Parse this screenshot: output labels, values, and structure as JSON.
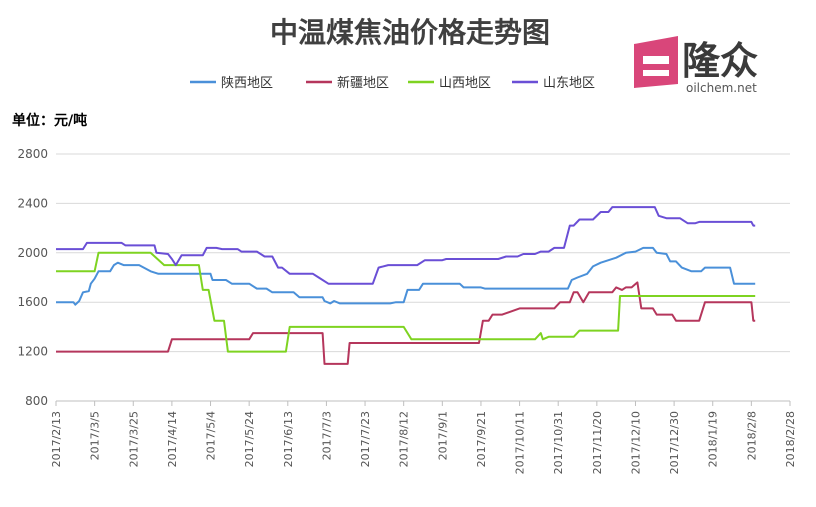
{
  "chart_data": {
    "type": "line",
    "title": "中温煤焦油价格走势图",
    "unit_label": "单位：元/吨",
    "xlabel": "",
    "ylabel": "",
    "ylim": [
      800,
      2800
    ],
    "yticks": [
      800,
      1200,
      1600,
      2000,
      2400,
      2800
    ],
    "xlim": [
      "2017-02-13",
      "2018-02-28"
    ],
    "xticks": [
      "2017/2/13",
      "2017/3/5",
      "2017/3/25",
      "2017/4/14",
      "2017/5/4",
      "2017/5/24",
      "2017/6/13",
      "2017/7/3",
      "2017/7/23",
      "2017/8/12",
      "2017/9/1",
      "2017/9/21",
      "2017/10/11",
      "2017/10/31",
      "2017/11/20",
      "2017/12/10",
      "2017/12/30",
      "2018/1/19",
      "2018/2/8",
      "2018/2/28"
    ],
    "grid": "horizontal",
    "legend_position": "top",
    "series": [
      {
        "name": "陕西地区",
        "color": "#4a90d9",
        "points": [
          [
            "2017-02-13",
            1600
          ],
          [
            "2017-02-22",
            1600
          ],
          [
            "2017-02-23",
            1580
          ],
          [
            "2017-02-25",
            1610
          ],
          [
            "2017-02-27",
            1680
          ],
          [
            "2017-03-02",
            1690
          ],
          [
            "2017-03-03",
            1750
          ],
          [
            "2017-03-05",
            1790
          ],
          [
            "2017-03-07",
            1850
          ],
          [
            "2017-03-13",
            1850
          ],
          [
            "2017-03-15",
            1900
          ],
          [
            "2017-03-17",
            1920
          ],
          [
            "2017-03-20",
            1900
          ],
          [
            "2017-03-28",
            1900
          ],
          [
            "2017-04-03",
            1850
          ],
          [
            "2017-04-07",
            1830
          ],
          [
            "2017-05-04",
            1830
          ],
          [
            "2017-05-05",
            1780
          ],
          [
            "2017-05-12",
            1780
          ],
          [
            "2017-05-15",
            1750
          ],
          [
            "2017-05-24",
            1750
          ],
          [
            "2017-05-28",
            1710
          ],
          [
            "2017-06-02",
            1710
          ],
          [
            "2017-06-05",
            1680
          ],
          [
            "2017-06-16",
            1680
          ],
          [
            "2017-06-19",
            1640
          ],
          [
            "2017-07-01",
            1640
          ],
          [
            "2017-07-02",
            1610
          ],
          [
            "2017-07-05",
            1590
          ],
          [
            "2017-07-07",
            1610
          ],
          [
            "2017-07-10",
            1590
          ],
          [
            "2017-08-05",
            1590
          ],
          [
            "2017-08-08",
            1600
          ],
          [
            "2017-08-12",
            1600
          ],
          [
            "2017-08-14",
            1700
          ],
          [
            "2017-08-20",
            1700
          ],
          [
            "2017-08-22",
            1750
          ],
          [
            "2017-09-10",
            1750
          ],
          [
            "2017-09-12",
            1720
          ],
          [
            "2017-09-21",
            1720
          ],
          [
            "2017-09-23",
            1710
          ],
          [
            "2017-11-05",
            1710
          ],
          [
            "2017-11-07",
            1780
          ],
          [
            "2017-11-10",
            1800
          ],
          [
            "2017-11-15",
            1830
          ],
          [
            "2017-11-18",
            1890
          ],
          [
            "2017-11-22",
            1920
          ],
          [
            "2017-11-30",
            1960
          ],
          [
            "2017-12-05",
            2000
          ],
          [
            "2017-12-10",
            2010
          ],
          [
            "2017-12-14",
            2040
          ],
          [
            "2017-12-19",
            2040
          ],
          [
            "2017-12-21",
            2000
          ],
          [
            "2017-12-26",
            1990
          ],
          [
            "2017-12-28",
            1930
          ],
          [
            "2017-12-31",
            1930
          ],
          [
            "2018-01-03",
            1880
          ],
          [
            "2018-01-08",
            1850
          ],
          [
            "2018-01-13",
            1850
          ],
          [
            "2018-01-15",
            1880
          ],
          [
            "2018-01-28",
            1880
          ],
          [
            "2018-01-30",
            1750
          ],
          [
            "2018-02-10",
            1750
          ]
        ]
      },
      {
        "name": "新疆地区",
        "color": "#b5365c",
        "points": [
          [
            "2017-02-13",
            1200
          ],
          [
            "2017-04-12",
            1200
          ],
          [
            "2017-04-14",
            1300
          ],
          [
            "2017-05-24",
            1300
          ],
          [
            "2017-05-26",
            1350
          ],
          [
            "2017-07-01",
            1350
          ],
          [
            "2017-07-02",
            1100
          ],
          [
            "2017-07-14",
            1100
          ],
          [
            "2017-07-15",
            1270
          ],
          [
            "2017-09-20",
            1270
          ],
          [
            "2017-09-22",
            1450
          ],
          [
            "2017-09-25",
            1450
          ],
          [
            "2017-09-27",
            1500
          ],
          [
            "2017-10-02",
            1500
          ],
          [
            "2017-10-11",
            1550
          ],
          [
            "2017-10-29",
            1550
          ],
          [
            "2017-11-01",
            1600
          ],
          [
            "2017-11-06",
            1600
          ],
          [
            "2017-11-08",
            1680
          ],
          [
            "2017-11-10",
            1680
          ],
          [
            "2017-11-13",
            1600
          ],
          [
            "2017-11-16",
            1680
          ],
          [
            "2017-11-20",
            1680
          ],
          [
            "2017-11-28",
            1680
          ],
          [
            "2017-11-30",
            1720
          ],
          [
            "2017-12-03",
            1700
          ],
          [
            "2017-12-05",
            1720
          ],
          [
            "2017-12-08",
            1720
          ],
          [
            "2017-12-11",
            1760
          ],
          [
            "2017-12-13",
            1550
          ],
          [
            "2017-12-19",
            1550
          ],
          [
            "2017-12-21",
            1500
          ],
          [
            "2017-12-29",
            1500
          ],
          [
            "2017-12-31",
            1450
          ],
          [
            "2018-01-12",
            1450
          ],
          [
            "2018-01-15",
            1600
          ],
          [
            "2018-02-08",
            1600
          ],
          [
            "2018-02-09",
            1450
          ],
          [
            "2018-02-10",
            1450
          ]
        ]
      },
      {
        "name": "山西地区",
        "color": "#7ed321",
        "points": [
          [
            "2017-02-13",
            1850
          ],
          [
            "2017-03-05",
            1850
          ],
          [
            "2017-03-07",
            2000
          ],
          [
            "2017-04-03",
            2000
          ],
          [
            "2017-04-10",
            1900
          ],
          [
            "2017-04-28",
            1900
          ],
          [
            "2017-04-30",
            1700
          ],
          [
            "2017-05-03",
            1700
          ],
          [
            "2017-05-06",
            1450
          ],
          [
            "2017-05-11",
            1450
          ],
          [
            "2017-05-13",
            1200
          ],
          [
            "2017-06-12",
            1200
          ],
          [
            "2017-06-14",
            1400
          ],
          [
            "2017-08-12",
            1400
          ],
          [
            "2017-08-16",
            1300
          ],
          [
            "2017-10-19",
            1300
          ],
          [
            "2017-10-22",
            1350
          ],
          [
            "2017-10-23",
            1300
          ],
          [
            "2017-10-26",
            1320
          ],
          [
            "2017-11-08",
            1320
          ],
          [
            "2017-11-11",
            1370
          ],
          [
            "2017-12-01",
            1370
          ],
          [
            "2017-12-02",
            1650
          ],
          [
            "2018-02-10",
            1650
          ]
        ]
      },
      {
        "name": "山东地区",
        "color": "#6a4fd6",
        "points": [
          [
            "2017-02-13",
            2030
          ],
          [
            "2017-02-27",
            2030
          ],
          [
            "2017-03-01",
            2080
          ],
          [
            "2017-03-19",
            2080
          ],
          [
            "2017-03-21",
            2060
          ],
          [
            "2017-04-05",
            2060
          ],
          [
            "2017-04-06",
            2000
          ],
          [
            "2017-04-12",
            1990
          ],
          [
            "2017-04-14",
            1950
          ],
          [
            "2017-04-16",
            1900
          ],
          [
            "2017-04-19",
            1980
          ],
          [
            "2017-04-30",
            1980
          ],
          [
            "2017-05-02",
            2040
          ],
          [
            "2017-05-07",
            2040
          ],
          [
            "2017-05-10",
            2030
          ],
          [
            "2017-05-18",
            2030
          ],
          [
            "2017-05-20",
            2010
          ],
          [
            "2017-05-28",
            2010
          ],
          [
            "2017-06-01",
            1970
          ],
          [
            "2017-06-05",
            1970
          ],
          [
            "2017-06-08",
            1880
          ],
          [
            "2017-06-10",
            1880
          ],
          [
            "2017-06-14",
            1830
          ],
          [
            "2017-06-26",
            1830
          ],
          [
            "2017-06-29",
            1800
          ],
          [
            "2017-07-04",
            1750
          ],
          [
            "2017-07-27",
            1750
          ],
          [
            "2017-07-30",
            1880
          ],
          [
            "2017-08-04",
            1900
          ],
          [
            "2017-08-19",
            1900
          ],
          [
            "2017-08-23",
            1940
          ],
          [
            "2017-09-01",
            1940
          ],
          [
            "2017-09-03",
            1950
          ],
          [
            "2017-09-30",
            1950
          ],
          [
            "2017-10-04",
            1970
          ],
          [
            "2017-10-10",
            1970
          ],
          [
            "2017-10-13",
            1990
          ],
          [
            "2017-10-19",
            1990
          ],
          [
            "2017-10-22",
            2010
          ],
          [
            "2017-10-26",
            2010
          ],
          [
            "2017-10-29",
            2040
          ],
          [
            "2017-11-03",
            2040
          ],
          [
            "2017-11-06",
            2220
          ],
          [
            "2017-11-08",
            2220
          ],
          [
            "2017-11-11",
            2270
          ],
          [
            "2017-11-18",
            2270
          ],
          [
            "2017-11-22",
            2330
          ],
          [
            "2017-11-26",
            2330
          ],
          [
            "2017-11-28",
            2370
          ],
          [
            "2017-12-20",
            2370
          ],
          [
            "2017-12-22",
            2300
          ],
          [
            "2017-12-26",
            2280
          ],
          [
            "2018-01-02",
            2280
          ],
          [
            "2018-01-06",
            2240
          ],
          [
            "2018-01-10",
            2240
          ],
          [
            "2018-01-12",
            2250
          ],
          [
            "2018-02-08",
            2250
          ],
          [
            "2018-02-09",
            2220
          ],
          [
            "2018-02-10",
            2220
          ]
        ]
      }
    ]
  },
  "logo": {
    "name": "隆众",
    "site": "oilchem.net",
    "color": "#d9467a"
  }
}
